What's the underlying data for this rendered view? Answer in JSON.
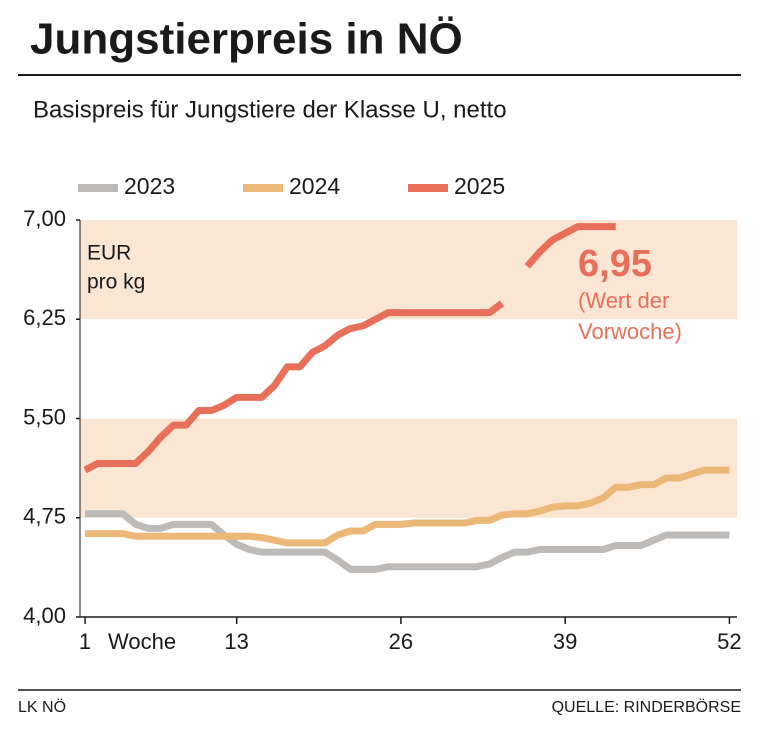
{
  "chart_data": {
    "type": "line",
    "title": "Jungstierpreis in NÖ",
    "subtitle": "Basispreis für Jungstiere der Klasse U, netto",
    "y_label": [
      "EUR",
      "pro kg"
    ],
    "x_label": "Woche",
    "x": [
      1,
      2,
      3,
      4,
      5,
      6,
      7,
      8,
      9,
      10,
      11,
      12,
      13,
      14,
      15,
      16,
      17,
      18,
      19,
      20,
      21,
      22,
      23,
      24,
      25,
      26,
      27,
      28,
      29,
      30,
      31,
      32,
      33,
      34,
      35,
      36,
      37,
      38,
      39,
      40,
      41,
      42,
      43,
      44,
      45,
      46,
      47,
      48,
      49,
      50,
      51,
      52
    ],
    "series": [
      {
        "name": "2023",
        "color": "#bdbab7",
        "values": [
          4.78,
          4.78,
          4.78,
          4.78,
          4.7,
          4.67,
          4.67,
          4.7,
          4.7,
          4.7,
          4.7,
          4.62,
          4.55,
          4.51,
          4.49,
          4.49,
          4.49,
          4.49,
          4.49,
          4.49,
          4.43,
          4.36,
          4.36,
          4.36,
          4.38,
          4.38,
          4.38,
          4.38,
          4.38,
          4.38,
          4.38,
          4.38,
          4.4,
          4.45,
          4.49,
          4.49,
          4.51,
          4.51,
          4.51,
          4.51,
          4.51,
          4.51,
          4.54,
          4.54,
          4.54,
          4.58,
          4.62,
          4.62,
          4.62,
          4.62,
          4.62,
          4.62
        ]
      },
      {
        "name": "2024",
        "color": "#ecb877",
        "values": [
          4.63,
          4.63,
          4.63,
          4.63,
          4.61,
          4.61,
          4.61,
          4.61,
          4.61,
          4.61,
          4.61,
          4.61,
          4.61,
          4.61,
          4.6,
          4.58,
          4.56,
          4.56,
          4.56,
          4.56,
          4.62,
          4.65,
          4.65,
          4.7,
          4.7,
          4.7,
          4.71,
          4.71,
          4.71,
          4.71,
          4.71,
          4.73,
          4.73,
          4.77,
          4.78,
          4.78,
          4.8,
          4.83,
          4.84,
          4.84,
          4.86,
          4.9,
          4.98,
          4.98,
          5.0,
          5.0,
          5.05,
          5.05,
          5.08,
          5.11,
          5.11,
          5.11
        ]
      },
      {
        "name": "2025",
        "color": "#e8705a",
        "values": [
          5.11,
          5.16,
          5.16,
          5.16,
          5.16,
          5.25,
          5.36,
          5.45,
          5.45,
          5.56,
          5.56,
          5.6,
          5.66,
          5.66,
          5.66,
          5.75,
          5.89,
          5.89,
          6.0,
          6.05,
          6.13,
          6.18,
          6.2,
          6.25,
          6.3,
          6.3,
          6.3,
          6.3,
          6.3,
          6.3,
          6.3,
          6.3,
          6.3,
          6.37,
          null,
          6.65,
          6.76,
          6.85,
          6.9,
          6.95,
          6.95,
          6.95,
          6.95,
          null,
          null,
          null,
          null,
          null,
          null,
          null,
          null,
          null
        ]
      }
    ],
    "xlim": [
      0.6,
      52.6
    ],
    "xticks": [
      1,
      13,
      26,
      39,
      52
    ],
    "ylim": [
      4,
      7
    ],
    "yticks": [
      {
        "value": 4,
        "label": "4,00"
      },
      {
        "value": 4.75,
        "label": "4,75"
      },
      {
        "value": 5.5,
        "label": "5,50"
      },
      {
        "value": 6.25,
        "label": "6,25"
      },
      {
        "value": 7,
        "label": "7,00"
      }
    ],
    "bands": true,
    "band_color": "#fbe6d3",
    "annotation": {
      "text": "6,95",
      "note": [
        "(Wert der",
        "Vorwoche)"
      ]
    },
    "footer_left": "LK NÖ",
    "footer_right": "QUELLE: RINDERBÖRSE"
  }
}
